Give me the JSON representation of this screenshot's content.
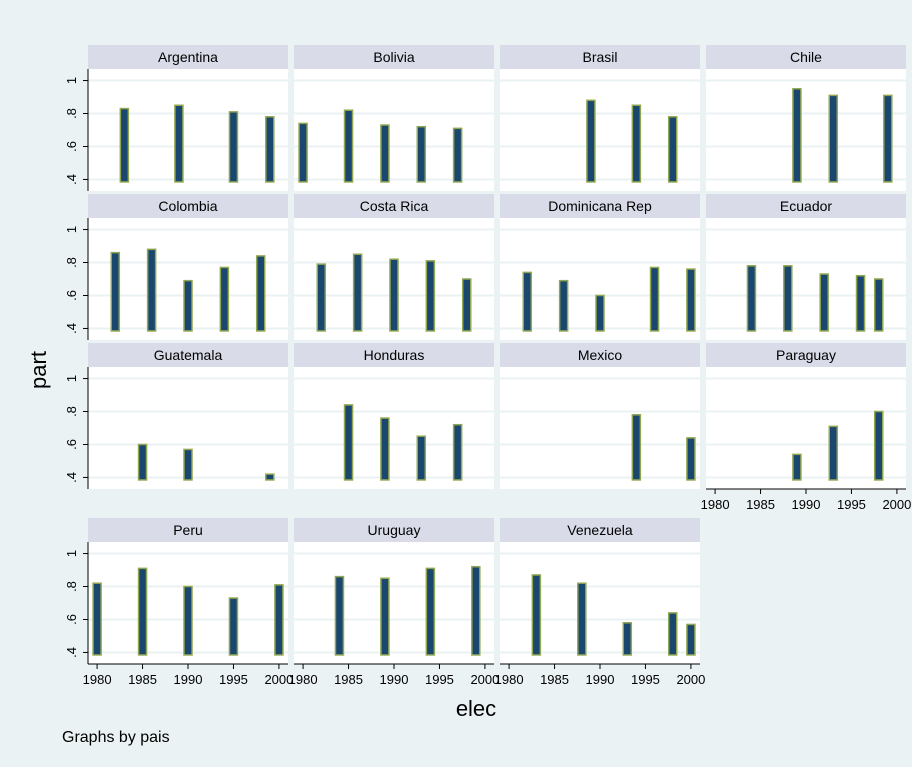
{
  "figure": {
    "ylabel": "part",
    "xlabel": "elec",
    "note": "Graphs by pais"
  },
  "colors": {
    "outer_bg": "#eaf2f3",
    "plot_bg": "#ffffff",
    "header_bg": "#d9dce8",
    "grid": "#eaf2f3",
    "bar_fill": "#1a476f",
    "bar_edge": "#90a650"
  },
  "chart_data": {
    "type": "bar",
    "subtype": "range-bar (bars start at 0.4)",
    "y_ticks": [
      ".4",
      ".6",
      ".8",
      "1"
    ],
    "y_tick_values": [
      0.4,
      0.6,
      0.8,
      1.0
    ],
    "x_ticks": [
      "1980",
      "1985",
      "1990",
      "1995",
      "2000"
    ],
    "x_tick_values": [
      1980,
      1985,
      1990,
      1995,
      2000
    ],
    "xlim": [
      1979,
      2001
    ],
    "ylim": [
      0.33,
      1.07
    ],
    "bar_base": 0.385,
    "grid": true,
    "panels": [
      {
        "name": "Argentina",
        "x": [
          1983,
          1989,
          1995,
          1999
        ],
        "y": [
          0.83,
          0.85,
          0.81,
          0.78
        ]
      },
      {
        "name": "Bolivia",
        "x": [
          1980,
          1985,
          1989,
          1993,
          1997
        ],
        "y": [
          0.74,
          0.82,
          0.73,
          0.72,
          0.71
        ]
      },
      {
        "name": "Brasil",
        "x": [
          1989,
          1994,
          1998
        ],
        "y": [
          0.88,
          0.85,
          0.78
        ]
      },
      {
        "name": "Chile",
        "x": [
          1989,
          1993,
          1999
        ],
        "y": [
          0.95,
          0.91,
          0.91
        ]
      },
      {
        "name": "Colombia",
        "x": [
          1982,
          1986,
          1990,
          1994,
          1998
        ],
        "y": [
          0.86,
          0.88,
          0.69,
          0.77,
          0.84
        ]
      },
      {
        "name": "Costa Rica",
        "x": [
          1982,
          1986,
          1990,
          1994,
          1998
        ],
        "y": [
          0.79,
          0.85,
          0.82,
          0.81,
          0.7
        ]
      },
      {
        "name": "Dominicana Rep",
        "x": [
          1982,
          1986,
          1990,
          1996,
          2000
        ],
        "y": [
          0.74,
          0.69,
          0.6,
          0.77,
          0.76
        ]
      },
      {
        "name": "Ecuador",
        "x": [
          1984,
          1988,
          1992,
          1996,
          1998
        ],
        "y": [
          0.78,
          0.78,
          0.73,
          0.72,
          0.7
        ]
      },
      {
        "name": "Guatemala",
        "x": [
          1985,
          1990,
          1999
        ],
        "y": [
          0.6,
          0.57,
          0.42
        ]
      },
      {
        "name": "Honduras",
        "x": [
          1985,
          1989,
          1993,
          1997
        ],
        "y": [
          0.84,
          0.76,
          0.65,
          0.72
        ]
      },
      {
        "name": "Mexico",
        "x": [
          1994,
          2000
        ],
        "y": [
          0.78,
          0.64
        ]
      },
      {
        "name": "Paraguay",
        "x": [
          1989,
          1993,
          1998
        ],
        "y": [
          0.54,
          0.71,
          0.8
        ]
      },
      {
        "name": "Peru",
        "x": [
          1980,
          1985,
          1990,
          1995,
          2000
        ],
        "y": [
          0.82,
          0.91,
          0.8,
          0.73,
          0.81
        ]
      },
      {
        "name": "Uruguay",
        "x": [
          1984,
          1989,
          1994,
          1999
        ],
        "y": [
          0.86,
          0.85,
          0.91,
          0.92
        ]
      },
      {
        "name": "Venezuela",
        "x": [
          1983,
          1988,
          1993,
          1998,
          2000
        ],
        "y": [
          0.87,
          0.82,
          0.58,
          0.64,
          0.57
        ]
      }
    ]
  }
}
